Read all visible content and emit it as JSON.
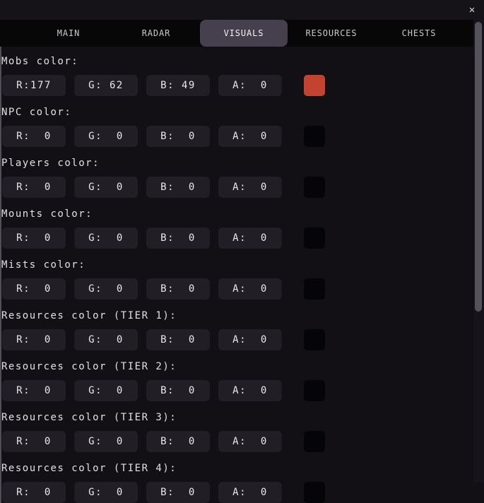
{
  "window": {
    "close_icon": "✕"
  },
  "tabs": [
    {
      "label": "MAIN"
    },
    {
      "label": "RADAR"
    },
    {
      "label": "VISUALS"
    },
    {
      "label": "RESOURCES"
    },
    {
      "label": "CHESTS"
    }
  ],
  "active_tab": "VISUALS",
  "sections": [
    {
      "label": "Mobs color:",
      "r": "R:177",
      "g": "G: 62",
      "b": "B: 49",
      "a": "A:  0",
      "swatch": "#c2432f"
    },
    {
      "label": "NPC color:",
      "r": "R:  0",
      "g": "G:  0",
      "b": "B:  0",
      "a": "A:  0",
      "swatch": "#050406"
    },
    {
      "label": "Players color:",
      "r": "R:  0",
      "g": "G:  0",
      "b": "B:  0",
      "a": "A:  0",
      "swatch": "#050406"
    },
    {
      "label": "Mounts color:",
      "r": "R:  0",
      "g": "G:  0",
      "b": "B:  0",
      "a": "A:  0",
      "swatch": "#050406"
    },
    {
      "label": "Mists color:",
      "r": "R:  0",
      "g": "G:  0",
      "b": "B:  0",
      "a": "A:  0",
      "swatch": "#050406"
    },
    {
      "label": "Resources color (TIER 1):",
      "r": "R:  0",
      "g": "G:  0",
      "b": "B:  0",
      "a": "A:  0",
      "swatch": "#050406"
    },
    {
      "label": "Resources color (TIER 2):",
      "r": "R:  0",
      "g": "G:  0",
      "b": "B:  0",
      "a": "A:  0",
      "swatch": "#050406"
    },
    {
      "label": "Resources color (TIER 3):",
      "r": "R:  0",
      "g": "G:  0",
      "b": "B:  0",
      "a": "A:  0",
      "swatch": "#050406"
    },
    {
      "label": "Resources color (TIER 4):",
      "r": "R:  0",
      "g": "G:  0",
      "b": "B:  0",
      "a": "A:  0",
      "swatch": "#050406"
    }
  ],
  "colors": {
    "mobs_swatch": "#c2432f",
    "active_tab_bg": "#453f4e",
    "field_bg": "#211e25",
    "tabbar_bg": "#070708",
    "window_bg": "#121015"
  }
}
